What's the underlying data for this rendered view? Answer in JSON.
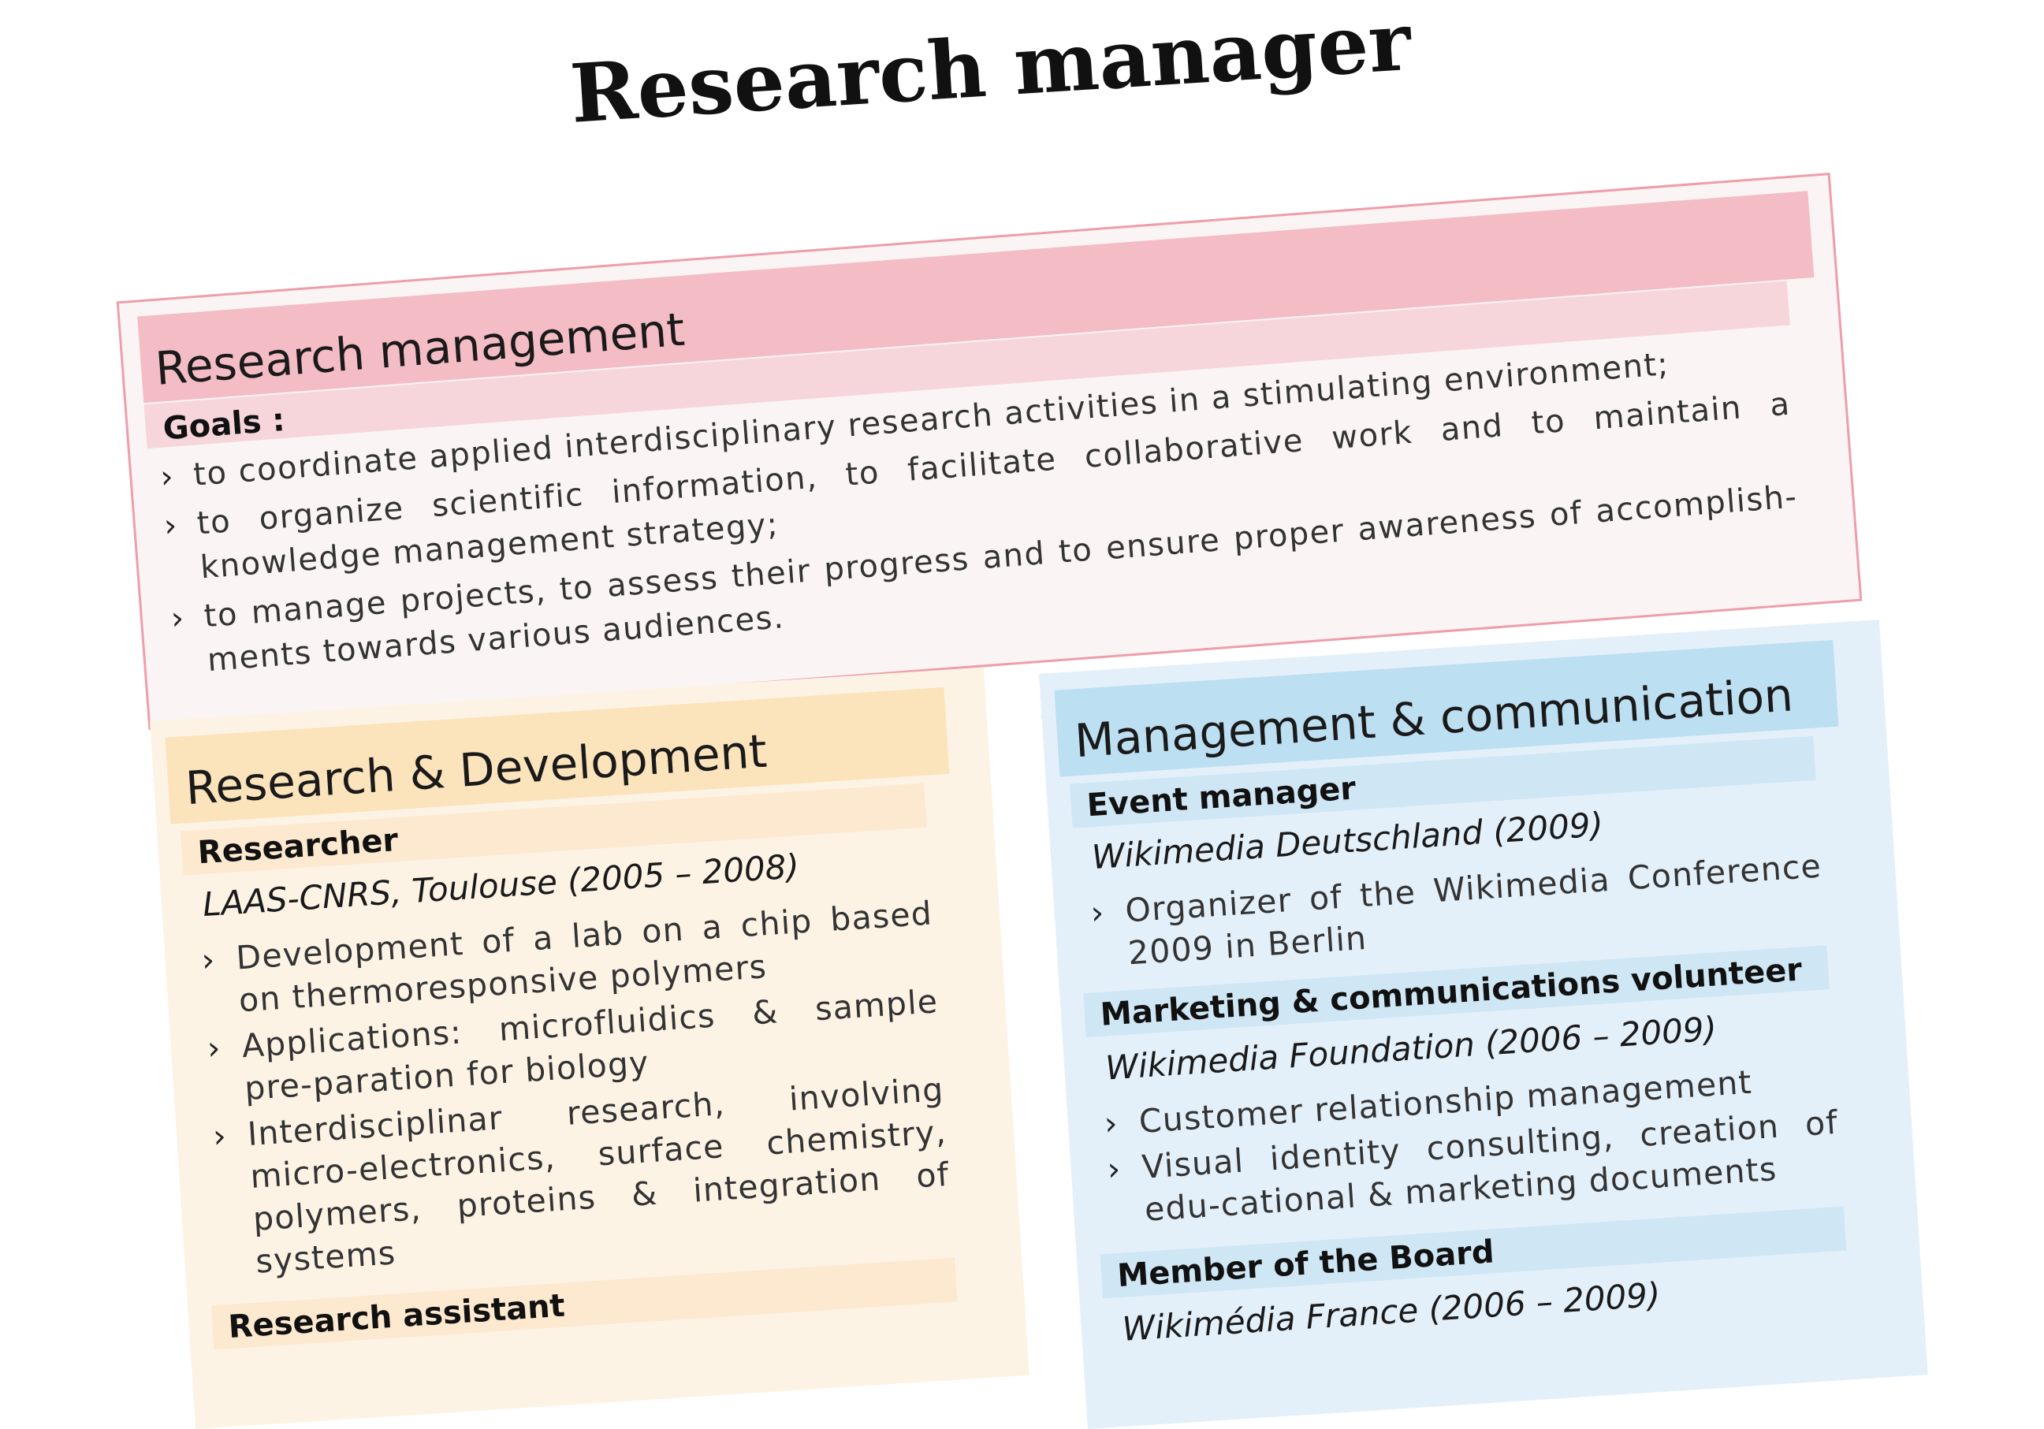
{
  "title": "Research manager",
  "research_management": {
    "heading": "Research management",
    "goals_label": "Goals :",
    "bullet": "›",
    "goals": [
      "to coordinate applied interdisciplinary research activities in a stimulating environment;",
      "to organize scientific information, to facilitate collaborative work and to maintain a knowledge management strategy;",
      "to manage projects, to assess their progress and to ensure proper awareness of accomplish-ments towards various audiences."
    ]
  },
  "research_development": {
    "heading": "Research & Development",
    "roles": [
      {
        "title": "Researcher",
        "org": "LAAS-CNRS, Toulouse (2005 – 2008)",
        "items": [
          "Development of a lab on a chip based on thermoresponsive polymers",
          "Applications: microfluidics & sample pre-paration for biology",
          "Interdisciplinar research, involving micro-electronics, surface chemistry, polymers, proteins & integration of systems"
        ]
      },
      {
        "title": "Research assistant",
        "org": "",
        "items": []
      }
    ]
  },
  "management_communication": {
    "heading": "Management & communication",
    "roles": [
      {
        "title": "Event manager",
        "org": "Wikimedia Deutschland (2009)",
        "items": [
          "Organizer of the Wikimedia Conference 2009 in Berlin"
        ]
      },
      {
        "title": "Marketing & communications volunteer",
        "org": "Wikimedia Foundation (2006 – 2009)",
        "items": [
          "Customer relationship management",
          "Visual identity consulting, creation of edu-cational & marketing documents"
        ]
      },
      {
        "title": "Member of the Board",
        "org": "Wikimédia France (2006 – 2009)",
        "items": []
      }
    ]
  },
  "colors": {
    "pink_border": "#ee9eab",
    "pink_head": "#f4bcc4",
    "orange_head": "#fbe3bc",
    "orange_tab": "#f8c978",
    "blue_head": "#bddff2",
    "blue_tab": "#7fc0e3"
  }
}
